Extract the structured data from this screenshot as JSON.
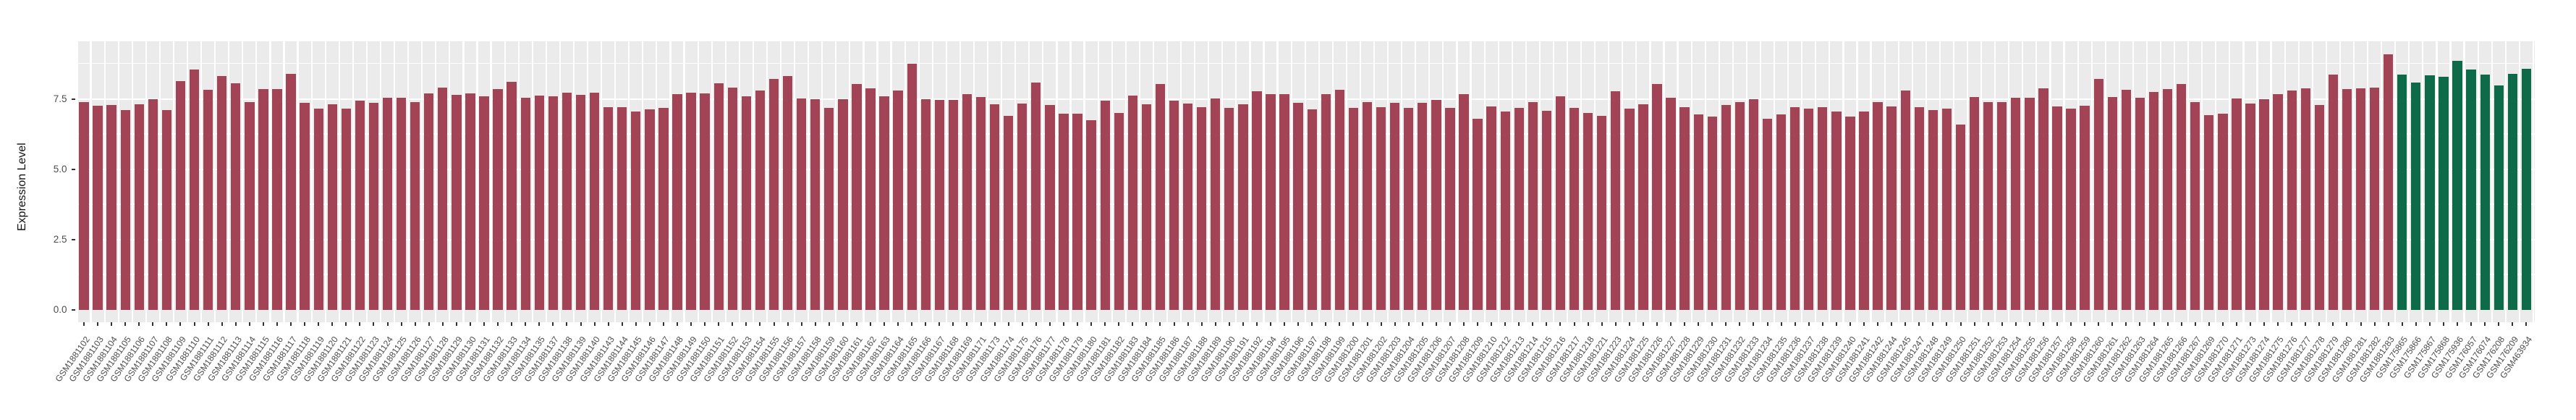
{
  "chart_data": {
    "type": "bar",
    "title": "",
    "xlabel": "",
    "ylabel": "Expression Level",
    "y_ticks": [
      "0.0",
      "2.5",
      "5.0",
      "7.5"
    ],
    "y_tick_values": [
      0,
      2.5,
      5.0,
      7.5
    ],
    "ylim": [
      0,
      9.6
    ],
    "grid": "on",
    "legend": "none",
    "panel_background": "#EBEBEB",
    "gridline_color": "#FFFFFF",
    "bar_groups": [
      {
        "color": "#A34456",
        "from": 0,
        "to": 167
      },
      {
        "color": "#0D6B49",
        "from": 168,
        "to": 177
      }
    ],
    "categories": [
      "GSM1881102",
      "GSM1881103",
      "GSM1881104",
      "GSM1881105",
      "GSM1881106",
      "GSM1881107",
      "GSM1881108",
      "GSM1881109",
      "GSM1881110",
      "GSM1881111",
      "GSM1881112",
      "GSM1881113",
      "GSM1881114",
      "GSM1881115",
      "GSM1881116",
      "GSM1881117",
      "GSM1881118",
      "GSM1881119",
      "GSM1881120",
      "GSM1881121",
      "GSM1881122",
      "GSM1881123",
      "GSM1881124",
      "GSM1881125",
      "GSM1881126",
      "GSM1881127",
      "GSM1881128",
      "GSM1881129",
      "GSM1881130",
      "GSM1881131",
      "GSM1881132",
      "GSM1881133",
      "GSM1881134",
      "GSM1881135",
      "GSM1881137",
      "GSM1881138",
      "GSM1881139",
      "GSM1881140",
      "GSM1881143",
      "GSM1881144",
      "GSM1881145",
      "GSM1881146",
      "GSM1881147",
      "GSM1881148",
      "GSM1881149",
      "GSM1881150",
      "GSM1881151",
      "GSM1881152",
      "GSM1881153",
      "GSM1881154",
      "GSM1881155",
      "GSM1881156",
      "GSM1881157",
      "GSM1881158",
      "GSM1881159",
      "GSM1881160",
      "GSM1881161",
      "GSM1881162",
      "GSM1881163",
      "GSM1881164",
      "GSM1881165",
      "GSM1881166",
      "GSM1881167",
      "GSM1881168",
      "GSM1881169",
      "GSM1881171",
      "GSM1881173",
      "GSM1881174",
      "GSM1881175",
      "GSM1881176",
      "GSM1881177",
      "GSM1881178",
      "GSM1881179",
      "GSM1881180",
      "GSM1881181",
      "GSM1881182",
      "GSM1881183",
      "GSM1881184",
      "GSM1881185",
      "GSM1881186",
      "GSM1881187",
      "GSM1881188",
      "GSM1881189",
      "GSM1881190",
      "GSM1881191",
      "GSM1881192",
      "GSM1881194",
      "GSM1881195",
      "GSM1881196",
      "GSM1881197",
      "GSM1881198",
      "GSM1881199",
      "GSM1881200",
      "GSM1881201",
      "GSM1881202",
      "GSM1881203",
      "GSM1881204",
      "GSM1881205",
      "GSM1881206",
      "GSM1881207",
      "GSM1881208",
      "GSM1881209",
      "GSM1881210",
      "GSM1881212",
      "GSM1881213",
      "GSM1881214",
      "GSM1881215",
      "GSM1881216",
      "GSM1881217",
      "GSM1881218",
      "GSM1881221",
      "GSM1881223",
      "GSM1881224",
      "GSM1881225",
      "GSM1881226",
      "GSM1881227",
      "GSM1881228",
      "GSM1881229",
      "GSM1881230",
      "GSM1881231",
      "GSM1881232",
      "GSM1881233",
      "GSM1881234",
      "GSM1881235",
      "GSM1881236",
      "GSM1881237",
      "GSM1881238",
      "GSM1881239",
      "GSM1881240",
      "GSM1881241",
      "GSM1881242",
      "GSM1881244",
      "GSM1881245",
      "GSM1881247",
      "GSM1881248",
      "GSM1881249",
      "GSM1881250",
      "GSM1881251",
      "GSM1881252",
      "GSM1881253",
      "GSM1881254",
      "GSM1881255",
      "GSM1881256",
      "GSM1881257",
      "GSM1881258",
      "GSM1881259",
      "GSM1881260",
      "GSM1881261",
      "GSM1881262",
      "GSM1881263",
      "GSM1881264",
      "GSM1881265",
      "GSM1881266",
      "GSM1881267",
      "GSM1881269",
      "GSM1881270",
      "GSM1881271",
      "GSM1881273",
      "GSM1881274",
      "GSM1881275",
      "GSM1881276",
      "GSM1881277",
      "GSM1881278",
      "GSM1881279",
      "GSM1881280",
      "GSM1881281",
      "GSM1881282",
      "GSM1881283",
      "GSM175865",
      "GSM175866",
      "GSM175867",
      "GSM175868",
      "GSM175936",
      "GSM176057",
      "GSM176074",
      "GSM176208",
      "GSM176209",
      "GSM463934"
    ],
    "values": [
      7.4,
      7.27,
      7.29,
      7.11,
      7.31,
      7.5,
      7.11,
      8.13,
      8.55,
      7.83,
      8.32,
      8.05,
      7.4,
      7.85,
      7.85,
      8.4,
      7.35,
      7.15,
      7.3,
      7.15,
      7.45,
      7.35,
      7.55,
      7.55,
      7.4,
      7.7,
      7.9,
      7.65,
      7.7,
      7.6,
      7.85,
      8.1,
      7.54,
      7.63,
      7.59,
      7.71,
      7.65,
      7.71,
      7.21,
      7.21,
      7.04,
      7.14,
      7.17,
      7.68,
      7.73,
      7.69,
      8.06,
      7.89,
      7.6,
      7.81,
      8.21,
      8.32,
      7.51,
      7.5,
      7.17,
      7.5,
      8.03,
      7.88,
      7.59,
      7.8,
      8.74,
      7.5,
      7.47,
      7.47,
      7.68,
      7.56,
      7.31,
      6.91,
      7.34,
      8.09,
      7.29,
      6.98,
      6.98,
      6.74,
      7.45,
      7.0,
      7.63,
      7.31,
      8.04,
      7.44,
      7.33,
      7.22,
      7.52,
      7.18,
      7.31,
      7.77,
      7.67,
      7.66,
      7.35,
      7.14,
      7.68,
      7.83,
      7.18,
      7.4,
      7.21,
      7.37,
      7.17,
      7.37,
      7.47,
      7.17,
      7.66,
      6.8,
      7.24,
      7.05,
      7.18,
      7.4,
      7.09,
      7.6,
      7.18,
      7.01,
      6.9,
      7.77,
      7.16,
      7.31,
      8.02,
      7.53,
      7.21,
      6.96,
      6.86,
      7.28,
      7.4,
      7.5,
      6.8,
      6.96,
      7.22,
      7.16,
      7.22,
      7.05,
      6.87,
      7.04,
      7.39,
      7.24,
      7.79,
      7.21,
      7.1,
      7.16,
      6.58,
      7.58,
      7.38,
      7.38,
      7.53,
      7.53,
      7.88,
      7.23,
      7.15,
      7.26,
      8.22,
      7.57,
      7.83,
      7.54,
      7.75,
      7.84,
      8.04,
      7.38,
      6.93,
      6.97,
      7.51,
      7.34,
      7.5,
      7.67,
      7.79,
      7.87,
      7.28,
      8.37,
      7.85,
      7.88,
      7.9,
      9.09,
      8.37,
      8.07,
      8.33,
      8.3,
      8.85,
      8.55,
      8.36,
      7.97,
      8.39,
      8.56
    ]
  }
}
